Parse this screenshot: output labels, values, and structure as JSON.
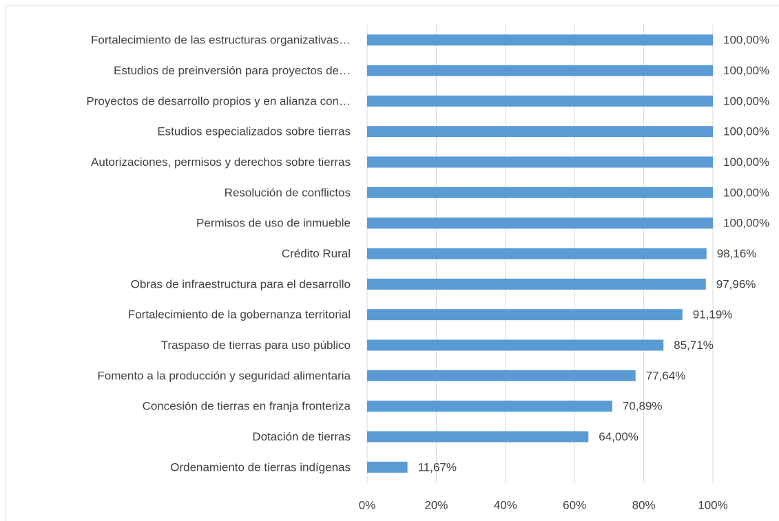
{
  "chart_data": {
    "type": "bar",
    "orientation": "horizontal",
    "categories": [
      "Fortalecimiento de las estructuras organizativas…",
      "Estudios de preinversión para proyectos de…",
      "Proyectos de desarrollo propios y en alianza con…",
      "Estudios especializados sobre tierras",
      "Autorizaciones, permisos y derechos sobre tierras",
      "Resolución de conflictos",
      "Permisos de uso de inmueble",
      "Crédito Rural",
      "Obras de infraestructura para el desarrollo",
      "Fortalecimiento de la gobernanza territorial",
      "Traspaso de tierras para uso público",
      "Fomento a la producción y seguridad alimentaria",
      "Concesión de tierras en franja fronteriza",
      "Dotación de tierras",
      "Ordenamiento de tierras indígenas"
    ],
    "values": [
      100,
      100,
      100,
      100,
      100,
      100,
      100,
      98.16,
      97.96,
      91.19,
      85.71,
      77.64,
      70.89,
      64,
      11.67
    ],
    "value_labels": [
      "100,00%",
      "100,00%",
      "100,00%",
      "100,00%",
      "100,00%",
      "100,00%",
      "100,00%",
      "98,16%",
      "97,96%",
      "91,19%",
      "85,71%",
      "77,64%",
      "70,89%",
      "64,00%",
      "11,67%"
    ],
    "color": "#5b9bd5",
    "xlim": [
      0,
      100
    ],
    "xticks": [
      {
        "value": 0,
        "label": "0%"
      },
      {
        "value": 20,
        "label": "20%"
      },
      {
        "value": 40,
        "label": "40%"
      },
      {
        "value": 60,
        "label": "60%"
      },
      {
        "value": 80,
        "label": "80%"
      },
      {
        "value": 100,
        "label": "100%"
      }
    ],
    "grid": true
  }
}
